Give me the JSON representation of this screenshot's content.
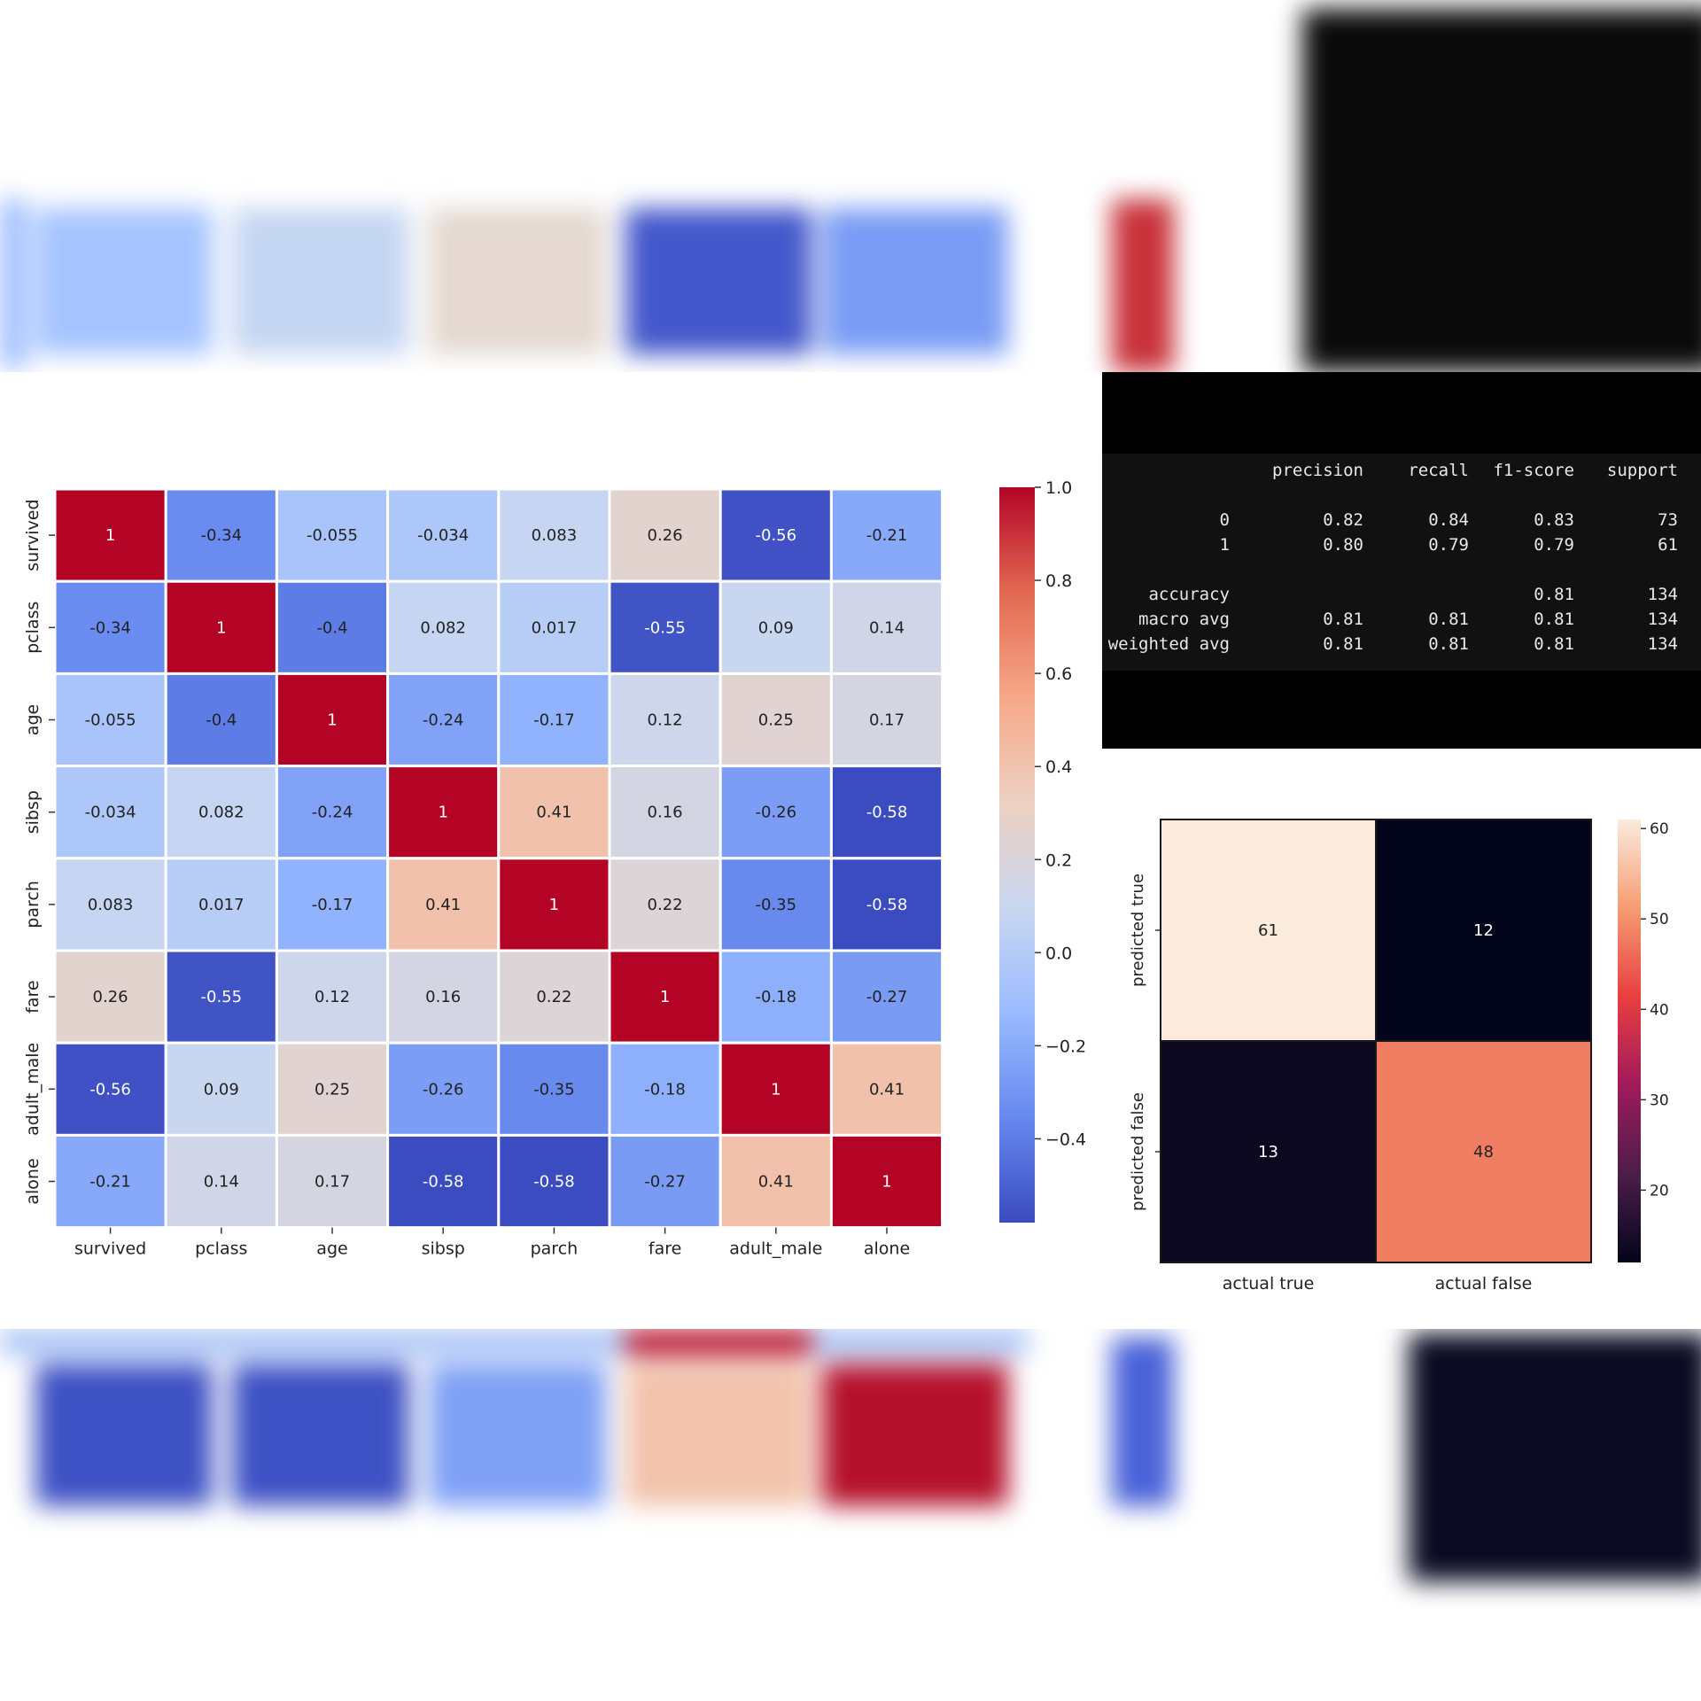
{
  "chart_data": [
    {
      "type": "heatmap",
      "title": "",
      "labels": [
        "survived",
        "pclass",
        "age",
        "sibsp",
        "parch",
        "fare",
        "adult_male",
        "alone"
      ],
      "matrix": [
        [
          1,
          -0.34,
          -0.055,
          -0.034,
          0.083,
          0.26,
          -0.56,
          -0.21
        ],
        [
          -0.34,
          1,
          -0.4,
          0.082,
          0.017,
          -0.55,
          0.09,
          0.14
        ],
        [
          -0.055,
          -0.4,
          1,
          -0.24,
          -0.17,
          0.12,
          0.25,
          0.17
        ],
        [
          -0.034,
          0.082,
          -0.24,
          1,
          0.41,
          0.16,
          -0.26,
          -0.58
        ],
        [
          0.083,
          0.017,
          -0.17,
          0.41,
          1,
          0.22,
          -0.35,
          -0.58
        ],
        [
          0.26,
          -0.55,
          0.12,
          0.16,
          0.22,
          1,
          -0.18,
          -0.27
        ],
        [
          -0.56,
          0.09,
          0.25,
          -0.26,
          -0.35,
          -0.18,
          1,
          0.41
        ],
        [
          -0.21,
          0.14,
          0.17,
          -0.58,
          -0.58,
          -0.27,
          0.41,
          1
        ]
      ],
      "colormap": "coolwarm",
      "vrange": [
        -0.58,
        1.0
      ],
      "colorbar_ticks": [
        1.0,
        0.8,
        0.6,
        0.4,
        0.2,
        0.0,
        -0.2,
        -0.4
      ],
      "colorbar_tick_labels": [
        "1.0",
        "0.8",
        "0.6",
        "0.4",
        "0.2",
        "0.0",
        "−0.2",
        "−0.4"
      ],
      "grid": "white lines between cells"
    },
    {
      "type": "table",
      "title": "",
      "columns": [
        "",
        "precision",
        "recall",
        "f1-score",
        "support"
      ],
      "rows": [
        [
          "0",
          "0.82",
          "0.84",
          "0.83",
          "73"
        ],
        [
          "1",
          "0.80",
          "0.79",
          "0.79",
          "61"
        ],
        [
          "accuracy",
          "",
          "",
          "0.81",
          "134"
        ],
        [
          "macro avg",
          "0.81",
          "0.81",
          "0.81",
          "134"
        ],
        [
          "weighted avg",
          "0.81",
          "0.81",
          "0.81",
          "134"
        ]
      ]
    },
    {
      "type": "heatmap",
      "title": "",
      "x_labels": [
        "actual true",
        "actual false"
      ],
      "y_labels": [
        "predicted true",
        "predicted false"
      ],
      "matrix": [
        [
          61,
          12
        ],
        [
          13,
          48
        ]
      ],
      "colormap": "rocket",
      "vrange": [
        12,
        61
      ],
      "colorbar_ticks": [
        60,
        50,
        40,
        30,
        20
      ],
      "colorbar_tick_labels": [
        "60",
        "50",
        "40",
        "30",
        "20"
      ]
    }
  ],
  "colors": {
    "coolwarm_stops": [
      "#3b4cc0",
      "#6788ee",
      "#9abbff",
      "#c9d7f0",
      "#edd1c2",
      "#f7a889",
      "#e26952",
      "#b40426"
    ],
    "rocket_stops": [
      "#03051a",
      "#4c1d4b",
      "#a11a5b",
      "#e83f3f",
      "#f69c73",
      "#faebdd"
    ],
    "report_bg": "#111111",
    "report_frame": "#000000"
  }
}
